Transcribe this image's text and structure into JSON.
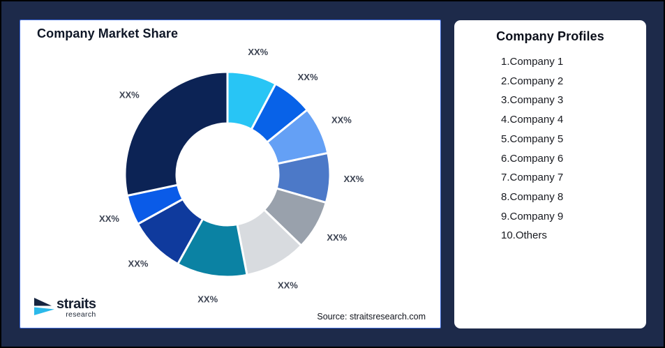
{
  "page": {
    "background_color": "#1D2A4A",
    "outer_border_color": "#000000"
  },
  "left_card": {
    "border_color": "#3A67D9",
    "source_text": "Source: straitsresearch.com"
  },
  "chart_data": {
    "type": "pie",
    "donut": true,
    "title": "Company Market Share",
    "start_angle_deg": 0,
    "direction": "clockwise",
    "values_shown_as_placeholders": true,
    "label_color": "#3C4352",
    "slice_gap_color": "#FFFFFF",
    "slices": [
      {
        "label": "XX%",
        "angle_deg": 28,
        "color": "#28C5F5"
      },
      {
        "label": "XX%",
        "angle_deg": 23,
        "color": "#0862E8"
      },
      {
        "label": "XX%",
        "angle_deg": 27,
        "color": "#64A0F5"
      },
      {
        "label": "XX%",
        "angle_deg": 28,
        "color": "#4C79C8"
      },
      {
        "label": "XX%",
        "angle_deg": 28,
        "color": "#99A1AC"
      },
      {
        "label": "XX%",
        "angle_deg": 35,
        "color": "#D8DBDF"
      },
      {
        "label": "XX%",
        "angle_deg": 40,
        "color": "#0B82A3"
      },
      {
        "label": "XX%",
        "angle_deg": 32,
        "color": "#0F3A9D"
      },
      {
        "label": "XX%",
        "angle_deg": 17,
        "color": "#0A5BE8"
      },
      {
        "label": "XX%",
        "angle_deg": 102,
        "color": "#0C2355"
      }
    ]
  },
  "logo": {
    "brand": "straits",
    "sub": "research",
    "icon_navy": "#16243F",
    "icon_cyan": "#2BB9EA"
  },
  "right_card": {
    "title": "Company Profiles",
    "items": [
      "1.Company 1",
      "2.Company 2",
      "3.Company 3",
      "4.Company 4",
      "5.Company 5",
      "6.Company 6",
      "7.Company 7",
      "8.Company 8",
      "9.Company 9",
      "10.Others"
    ]
  }
}
